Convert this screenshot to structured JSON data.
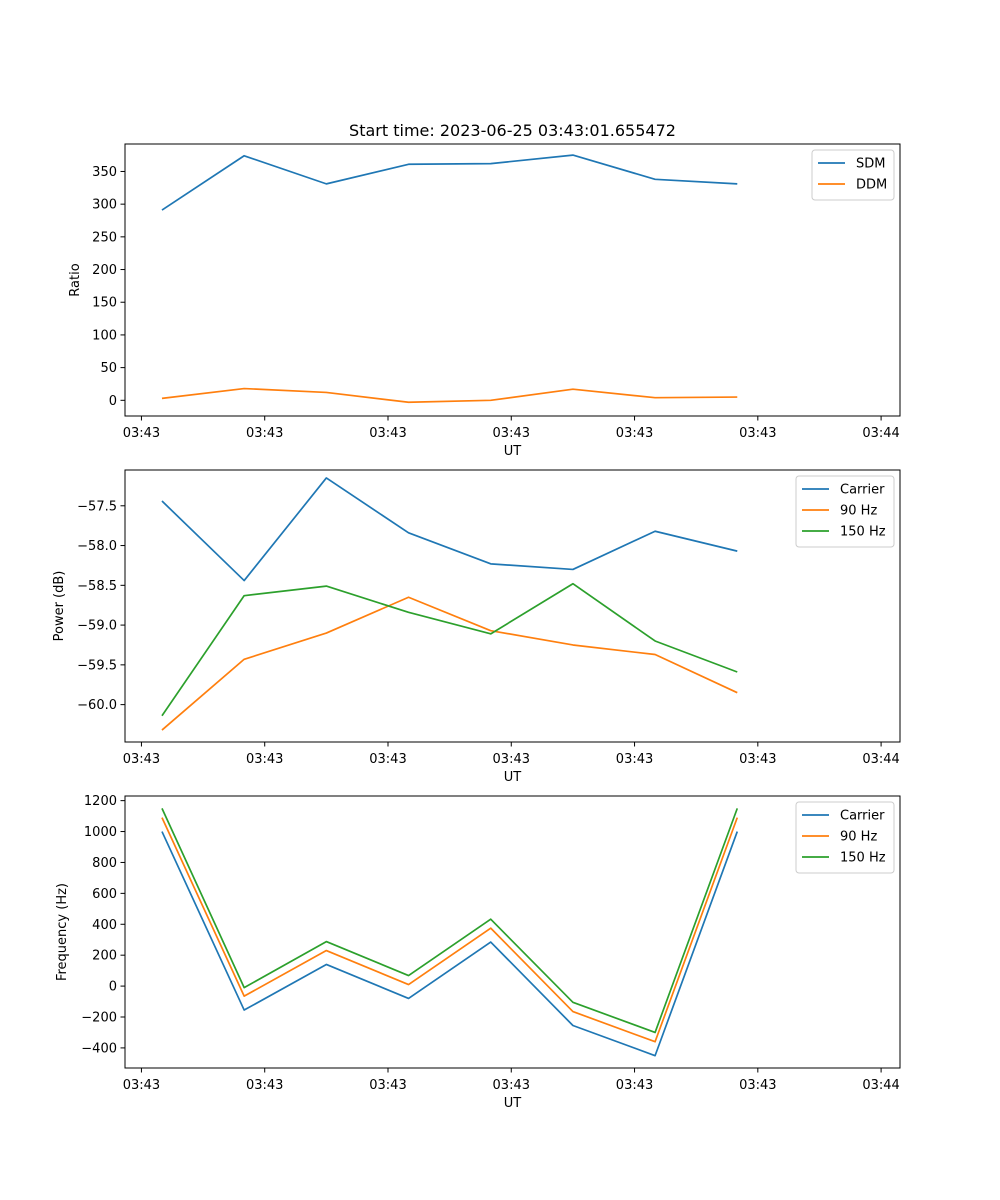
{
  "figure": {
    "title": "Start time: 2023-06-25 03:43:01.655472"
  },
  "x_tick_labels": [
    "03:43",
    "03:43",
    "03:43",
    "03:43",
    "03:43",
    "03:43",
    "03:44"
  ],
  "chart_data": [
    {
      "type": "line",
      "title": "Start time: 2023-06-25 03:43:01.655472",
      "xlabel": "UT",
      "ylabel": "Ratio",
      "x": [
        1,
        2,
        3,
        4,
        5,
        6,
        7,
        8
      ],
      "xlim": [
        0.55,
        9.98
      ],
      "ylim": [
        -24,
        392
      ],
      "yticks": [
        0,
        50,
        100,
        150,
        200,
        250,
        300,
        350
      ],
      "ytick_labels": [
        "0",
        "50",
        "100",
        "150",
        "200",
        "250",
        "300",
        "350"
      ],
      "grid": false,
      "legend": "upper right",
      "series": [
        {
          "name": "SDM",
          "color": "#1f77b4",
          "values": [
            291,
            374,
            331,
            361,
            362,
            375,
            338,
            331
          ]
        },
        {
          "name": "DDM",
          "color": "#ff7f0e",
          "values": [
            3,
            18,
            12,
            -3,
            0,
            17,
            4,
            5
          ]
        }
      ]
    },
    {
      "type": "line",
      "xlabel": "UT",
      "ylabel": "Power (dB)",
      "x": [
        1,
        2,
        3,
        4,
        5,
        6,
        7,
        8
      ],
      "xlim": [
        0.55,
        9.98
      ],
      "ylim": [
        -60.47,
        -57.05
      ],
      "yticks": [
        -60.0,
        -59.5,
        -59.0,
        -58.5,
        -58.0,
        -57.5
      ],
      "ytick_labels": [
        "−60.0",
        "−59.5",
        "−59.0",
        "−58.5",
        "−58.0",
        "−57.5"
      ],
      "grid": false,
      "legend": "upper right",
      "series": [
        {
          "name": "Carrier",
          "color": "#1f77b4",
          "values": [
            -57.44,
            -58.44,
            -57.15,
            -57.84,
            -58.23,
            -58.3,
            -57.82,
            -58.07
          ]
        },
        {
          "name": "90 Hz",
          "color": "#ff7f0e",
          "values": [
            -60.32,
            -59.43,
            -59.1,
            -58.65,
            -59.07,
            -59.25,
            -59.37,
            -59.85
          ]
        },
        {
          "name": "150 Hz",
          "color": "#2ca02c",
          "values": [
            -60.14,
            -58.63,
            -58.51,
            -58.84,
            -59.11,
            -58.48,
            -59.2,
            -59.59
          ]
        }
      ]
    },
    {
      "type": "line",
      "xlabel": "UT",
      "ylabel": "Frequency (Hz)",
      "x": [
        1,
        2,
        3,
        4,
        5,
        6,
        7,
        8
      ],
      "xlim": [
        0.55,
        9.98
      ],
      "ylim": [
        -530,
        1230
      ],
      "yticks": [
        -400,
        -200,
        0,
        200,
        400,
        600,
        800,
        1000,
        1200
      ],
      "ytick_labels": [
        "−400",
        "−200",
        "0",
        "200",
        "400",
        "600",
        "800",
        "1000",
        "1200"
      ],
      "grid": false,
      "legend": "upper right",
      "series": [
        {
          "name": "Carrier",
          "color": "#1f77b4",
          "values": [
            1000,
            -155,
            140,
            -80,
            285,
            -255,
            -450,
            1000
          ]
        },
        {
          "name": "90 Hz",
          "color": "#ff7f0e",
          "values": [
            1090,
            -65,
            230,
            10,
            375,
            -165,
            -360,
            1090
          ]
        },
        {
          "name": "150 Hz",
          "color": "#2ca02c",
          "values": [
            1150,
            -10,
            288,
            68,
            433,
            -105,
            -300,
            1150
          ]
        }
      ]
    }
  ]
}
